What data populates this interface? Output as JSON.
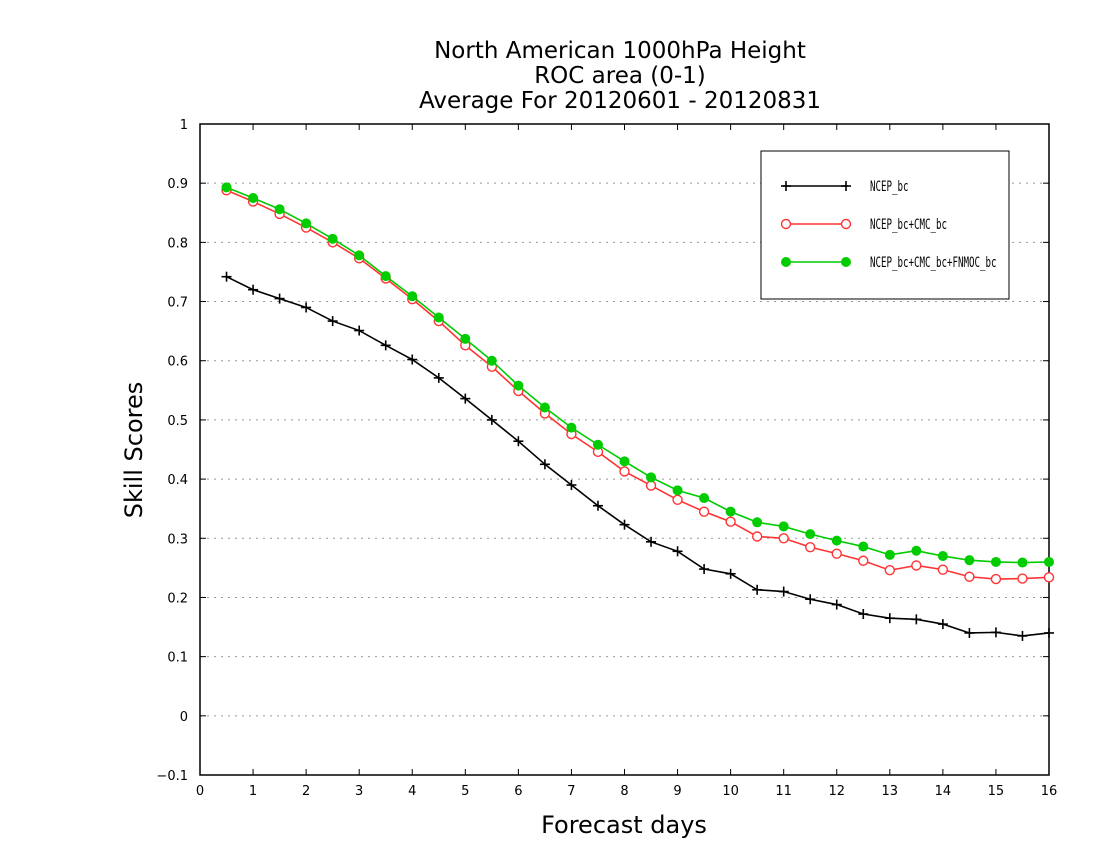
{
  "chart_data": {
    "type": "line",
    "title_lines": [
      "North American 1000hPa Height",
      "ROC area (0-1)",
      "Average For 20120601 - 20120831"
    ],
    "xlabel": "Forecast days",
    "ylabel": "Skill Scores",
    "xlim": [
      0,
      16
    ],
    "ylim": [
      -0.1,
      1
    ],
    "xticks": [
      "0",
      "1",
      "2",
      "3",
      "4",
      "5",
      "6",
      "7",
      "8",
      "9",
      "10",
      "11",
      "12",
      "13",
      "14",
      "15",
      "16"
    ],
    "yticks": [
      "−0.1",
      "0",
      "0.1",
      "0.2",
      "0.3",
      "0.4",
      "0.5",
      "0.6",
      "0.7",
      "0.8",
      "0.9",
      "1"
    ],
    "grid": "horizontal dotted",
    "legend_position": "top-right",
    "x": [
      0.5,
      1,
      1.5,
      2,
      2.5,
      3,
      3.5,
      4,
      4.5,
      5,
      5.5,
      6,
      6.5,
      7,
      7.5,
      8,
      8.5,
      9,
      9.5,
      10,
      10.5,
      11,
      11.5,
      12,
      12.5,
      13,
      13.5,
      14,
      14.5,
      15,
      15.5,
      16
    ],
    "series": [
      {
        "name": "NCEP_bc",
        "color": "#000000",
        "marker": "plus",
        "values": [
          0.742,
          0.72,
          0.705,
          0.69,
          0.667,
          0.651,
          0.626,
          0.602,
          0.571,
          0.536,
          0.5,
          0.464,
          0.425,
          0.39,
          0.355,
          0.323,
          0.294,
          0.278,
          0.248,
          0.24,
          0.213,
          0.21,
          0.197,
          0.188,
          0.172,
          0.165,
          0.163,
          0.155,
          0.14,
          0.141,
          0.135,
          0.14
        ]
      },
      {
        "name": "NCEP_bc+CMC_bc",
        "color": "#ff3333",
        "marker": "open-circle",
        "values": [
          0.888,
          0.869,
          0.848,
          0.825,
          0.8,
          0.773,
          0.739,
          0.704,
          0.667,
          0.626,
          0.59,
          0.549,
          0.511,
          0.476,
          0.446,
          0.413,
          0.389,
          0.365,
          0.345,
          0.328,
          0.303,
          0.3,
          0.285,
          0.274,
          0.262,
          0.246,
          0.254,
          0.247,
          0.235,
          0.231,
          0.232,
          0.234
        ]
      },
      {
        "name": "NCEP_bc+CMC_bc+FNMOC_bc",
        "color": "#00cc00",
        "marker": "filled-circle",
        "values": [
          0.893,
          0.875,
          0.856,
          0.832,
          0.806,
          0.778,
          0.743,
          0.709,
          0.673,
          0.637,
          0.6,
          0.558,
          0.521,
          0.487,
          0.458,
          0.43,
          0.403,
          0.381,
          0.368,
          0.345,
          0.327,
          0.32,
          0.307,
          0.296,
          0.286,
          0.272,
          0.279,
          0.27,
          0.263,
          0.26,
          0.259,
          0.26
        ]
      }
    ]
  }
}
